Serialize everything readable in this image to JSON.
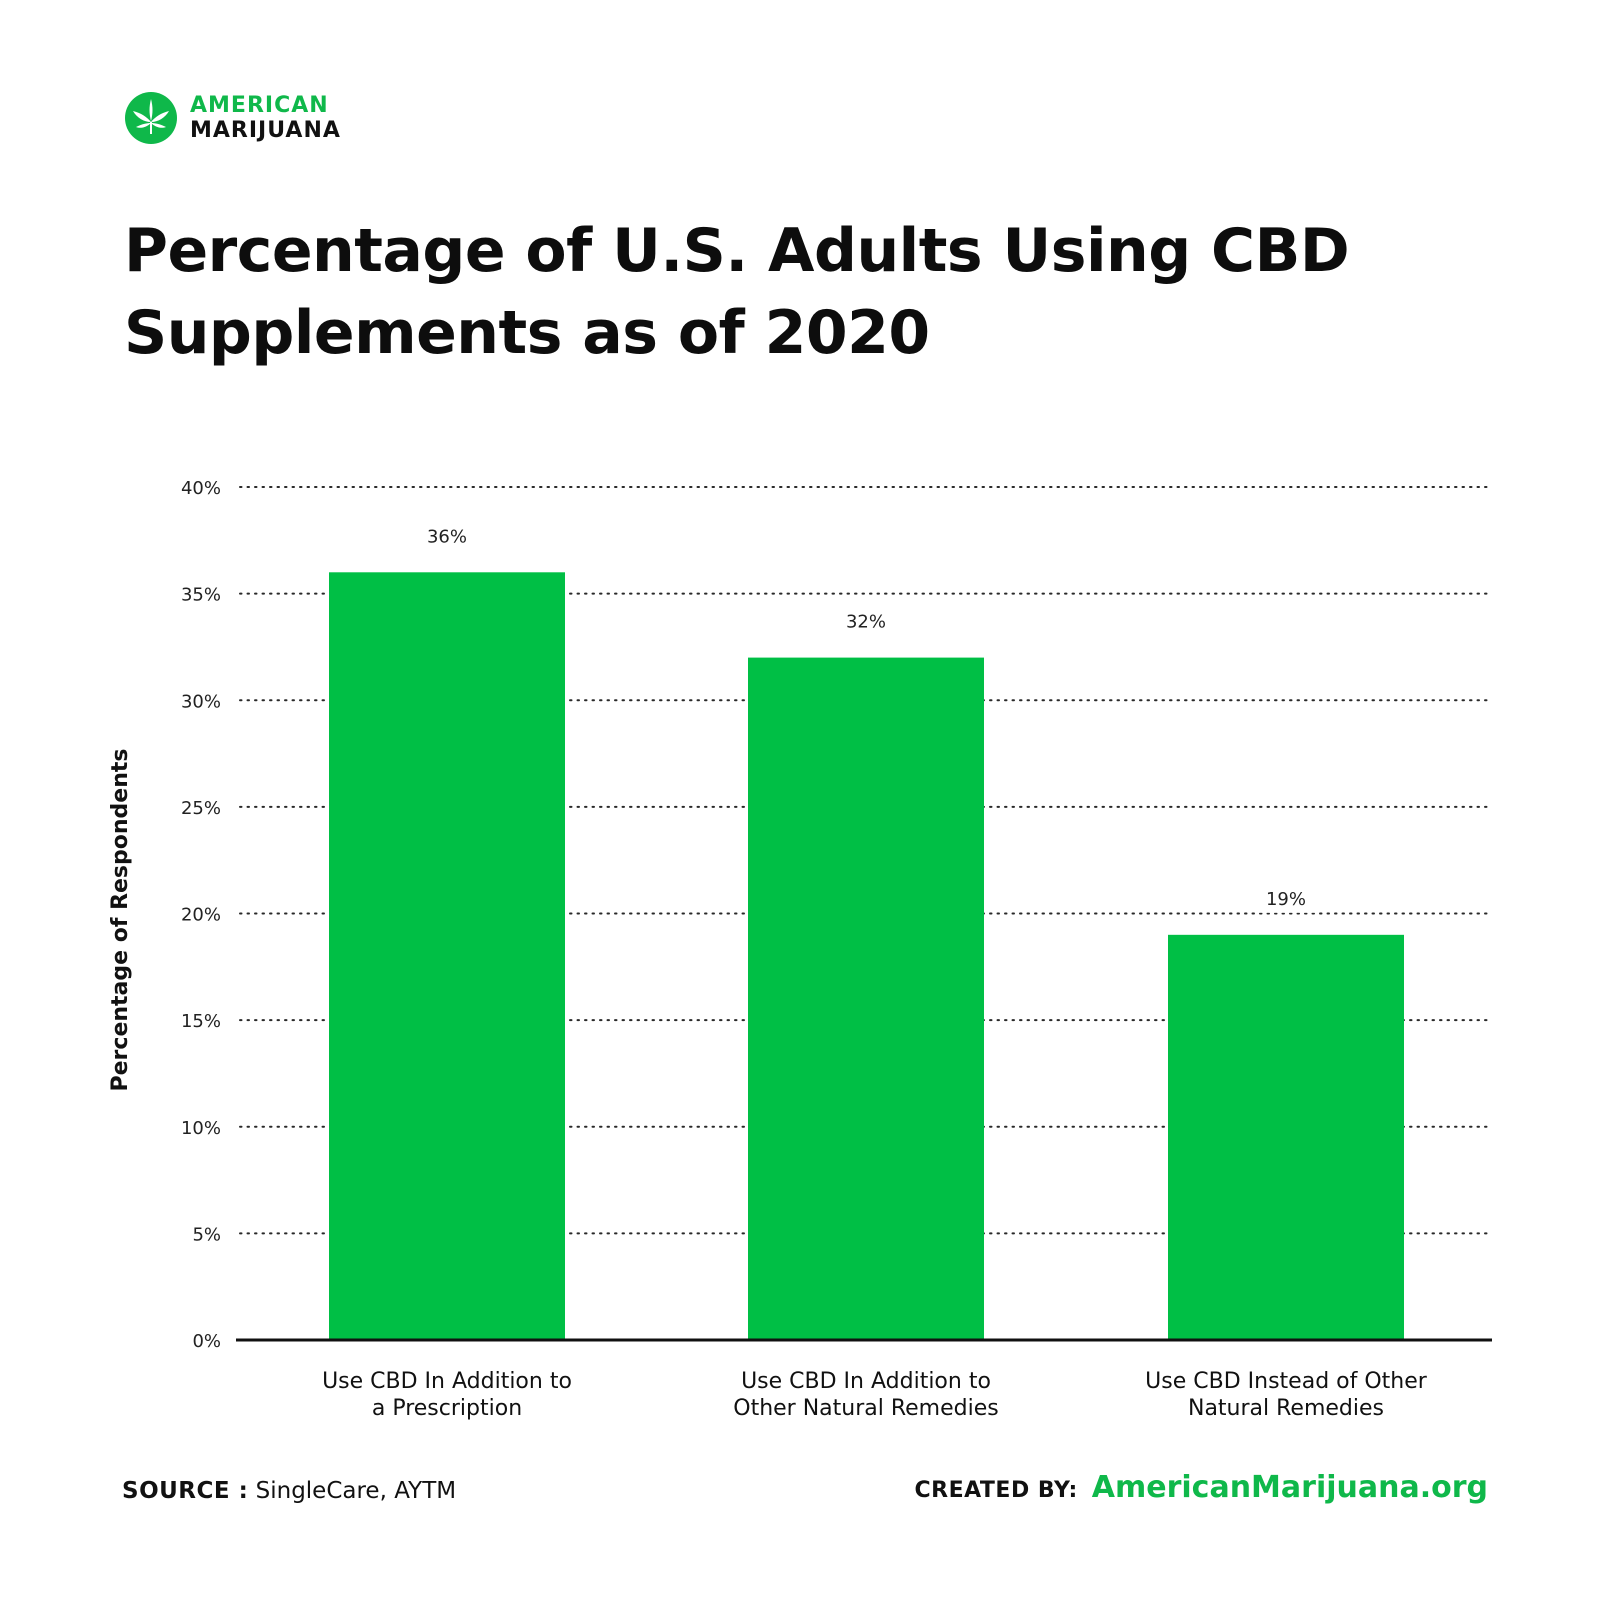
{
  "brand": {
    "line1": "AMERICAN",
    "line2": "MARIJUANA",
    "color": "#0fb84a"
  },
  "title": "Percentage of U.S. Adults Using CBD Supplements as of 2020",
  "chart_data": {
    "type": "bar",
    "title": "Percentage of U.S. Adults Using CBD Supplements as of 2020",
    "xlabel": "",
    "ylabel": "Percentage of Respondents",
    "categories": [
      "Use CBD In Addition to a Prescription",
      "Use CBD In Addition to Other Natural Remedies",
      "Use CBD Instead of Other Natural Remedies"
    ],
    "category_lines": [
      [
        "Use CBD In Addition to",
        "a Prescription"
      ],
      [
        "Use CBD In Addition to",
        "Other Natural Remedies"
      ],
      [
        "Use CBD Instead of Other",
        "Natural Remedies"
      ]
    ],
    "values": [
      36,
      32,
      19
    ],
    "value_labels": [
      "36%",
      "32%",
      "19%"
    ],
    "ylim": [
      0,
      40
    ],
    "yticks": [
      0,
      5,
      10,
      15,
      20,
      25,
      30,
      35,
      40
    ],
    "ytick_labels": [
      "0%",
      "5%",
      "10%",
      "15%",
      "20%",
      "25%",
      "30%",
      "35%",
      "40%"
    ],
    "grid": true,
    "bar_color": "#00bf45"
  },
  "footer": {
    "source_label": "SOURCE :",
    "source_text": "SingleCare, AYTM",
    "created_label": "CREATED BY:",
    "created_site": "AmericanMarijuana.org"
  }
}
